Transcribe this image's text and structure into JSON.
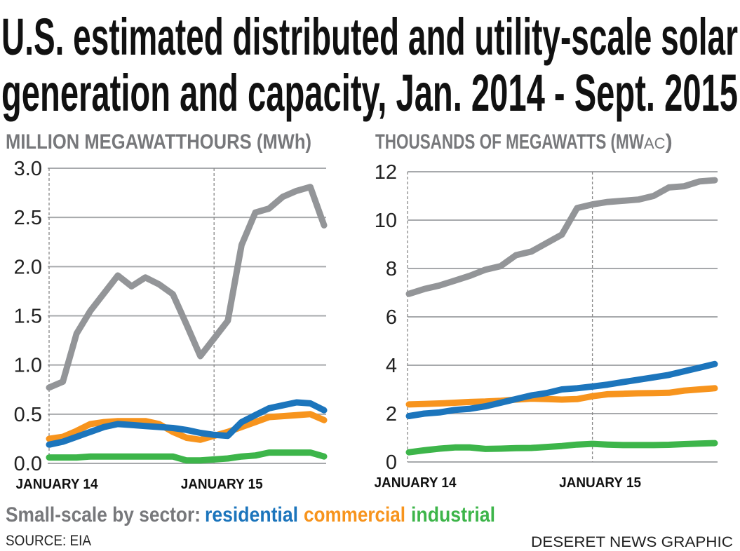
{
  "title_lines": [
    "U.S. estimated distributed and utility-scale solar",
    "generation and capacity, Jan. 2014 - Sept. 2015"
  ],
  "legend": {
    "prefix": "Small-scale by sector:",
    "residential": "residential",
    "commercial": "commercial",
    "industrial": "industrial"
  },
  "source": "SOURCE:  EIA",
  "credit": "DESERET NEWS GRAPHIC",
  "colors": {
    "total": "#939598",
    "residential": "#1c75bc",
    "commercial": "#f7941d",
    "industrial": "#3db54a",
    "grid": "#a7a9ac"
  },
  "chart_data": [
    {
      "type": "line",
      "ylabel": "MILLION MEGAWATTHOURS (MWh)",
      "ylim": [
        0,
        3.0
      ],
      "yticks": [
        "0.0",
        "0.5",
        "1.0",
        "1.5",
        "2.0",
        "2.5",
        "3.0"
      ],
      "ytick_values": [
        0,
        0.5,
        1.0,
        1.5,
        2.0,
        2.5,
        3.0
      ],
      "xticks": [
        {
          "label": "JANUARY 14",
          "month": 0
        },
        {
          "label": "JANUARY 15",
          "month": 12
        }
      ],
      "x": [
        "2014-01",
        "2014-02",
        "2014-03",
        "2014-04",
        "2014-05",
        "2014-06",
        "2014-07",
        "2014-08",
        "2014-09",
        "2014-10",
        "2014-11",
        "2014-12",
        "2015-01",
        "2015-02",
        "2015-03",
        "2015-04",
        "2015-05",
        "2015-06",
        "2015-07",
        "2015-08",
        "2015-09"
      ],
      "grid": true,
      "series": [
        {
          "key": "total",
          "values": [
            0.77,
            0.83,
            1.32,
            1.55,
            1.73,
            1.91,
            1.8,
            1.89,
            1.82,
            1.72,
            1.41,
            1.09,
            1.27,
            1.45,
            2.22,
            2.55,
            2.59,
            2.71,
            2.77,
            2.81,
            2.42
          ]
        },
        {
          "key": "commercial",
          "name": "commercial",
          "values": [
            0.25,
            0.27,
            0.33,
            0.4,
            0.42,
            0.43,
            0.43,
            0.43,
            0.4,
            0.32,
            0.26,
            0.24,
            0.28,
            0.32,
            0.37,
            0.42,
            0.47,
            0.48,
            0.49,
            0.5,
            0.44
          ]
        },
        {
          "key": "residential",
          "name": "residential",
          "values": [
            0.19,
            0.22,
            0.27,
            0.32,
            0.37,
            0.4,
            0.39,
            0.38,
            0.37,
            0.36,
            0.34,
            0.31,
            0.29,
            0.28,
            0.42,
            0.49,
            0.56,
            0.59,
            0.62,
            0.61,
            0.54
          ]
        },
        {
          "key": "industrial",
          "name": "industrial",
          "values": [
            0.06,
            0.06,
            0.06,
            0.07,
            0.07,
            0.07,
            0.07,
            0.07,
            0.07,
            0.07,
            0.03,
            0.03,
            0.04,
            0.05,
            0.07,
            0.08,
            0.11,
            0.11,
            0.11,
            0.11,
            0.07
          ]
        }
      ]
    },
    {
      "type": "line",
      "ylabel": "THOUSANDS OF MEGAWATTS (MW",
      "ylabel_sub": "AC",
      "ylabel_end": ")",
      "ylim": [
        0,
        12
      ],
      "yticks": [
        "0",
        "2",
        "4",
        "6",
        "8",
        "10",
        "12"
      ],
      "ytick_values": [
        0,
        2,
        4,
        6,
        8,
        10,
        12
      ],
      "xticks": [
        {
          "label": "JANUARY 14",
          "month": 0
        },
        {
          "label": "JANUARY 15",
          "month": 12
        }
      ],
      "x": [
        "2014-01",
        "2014-02",
        "2014-03",
        "2014-04",
        "2014-05",
        "2014-06",
        "2014-07",
        "2014-08",
        "2014-09",
        "2014-10",
        "2014-11",
        "2014-12",
        "2015-01",
        "2015-02",
        "2015-03",
        "2015-04",
        "2015-05",
        "2015-06",
        "2015-07",
        "2015-08",
        "2015-09"
      ],
      "grid": true,
      "series": [
        {
          "key": "total",
          "values": [
            6.95,
            7.15,
            7.3,
            7.5,
            7.7,
            7.95,
            8.1,
            8.55,
            8.7,
            9.05,
            9.4,
            10.5,
            10.65,
            10.75,
            10.8,
            10.85,
            11.0,
            11.35,
            11.4,
            11.6,
            11.65
          ]
        },
        {
          "key": "commercial",
          "name": "commercial",
          "values": [
            2.38,
            2.4,
            2.42,
            2.45,
            2.48,
            2.5,
            2.53,
            2.58,
            2.62,
            2.6,
            2.58,
            2.6,
            2.72,
            2.8,
            2.82,
            2.84,
            2.85,
            2.86,
            2.95,
            3.0,
            3.05
          ]
        },
        {
          "key": "residential",
          "name": "residential",
          "values": [
            1.9,
            2.0,
            2.05,
            2.15,
            2.2,
            2.3,
            2.45,
            2.6,
            2.75,
            2.85,
            3.0,
            3.05,
            3.12,
            3.2,
            3.3,
            3.4,
            3.5,
            3.6,
            3.75,
            3.9,
            4.05
          ]
        },
        {
          "key": "industrial",
          "name": "industrial",
          "values": [
            0.4,
            0.48,
            0.55,
            0.6,
            0.6,
            0.54,
            0.55,
            0.57,
            0.58,
            0.62,
            0.66,
            0.72,
            0.75,
            0.72,
            0.7,
            0.7,
            0.7,
            0.71,
            0.74,
            0.76,
            0.78
          ]
        }
      ]
    }
  ]
}
